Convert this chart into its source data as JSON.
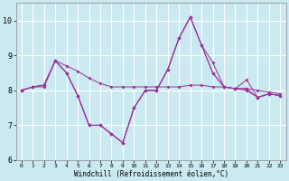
{
  "xlabel": "Windchill (Refroidissement éolien,°C)",
  "background_color": "#cbe9f0",
  "grid_color": "#ffffff",
  "line_color": "#993399",
  "xlim": [
    -0.5,
    23.5
  ],
  "ylim": [
    6,
    10.5
  ],
  "yticks": [
    6,
    7,
    8,
    9,
    10
  ],
  "xticks": [
    0,
    1,
    2,
    3,
    4,
    5,
    6,
    7,
    8,
    9,
    10,
    11,
    12,
    13,
    14,
    15,
    16,
    17,
    18,
    19,
    20,
    21,
    22,
    23
  ],
  "series": [
    [
      8.0,
      8.1,
      8.1,
      8.85,
      8.7,
      8.55,
      8.35,
      8.2,
      8.1,
      8.1,
      8.1,
      8.1,
      8.1,
      8.1,
      8.1,
      8.15,
      8.15,
      8.1,
      8.1,
      8.05,
      8.05,
      8.0,
      7.95,
      7.9
    ],
    [
      8.0,
      8.1,
      8.15,
      8.85,
      8.5,
      7.85,
      7.0,
      7.0,
      6.75,
      6.5,
      7.5,
      8.0,
      8.0,
      8.6,
      9.5,
      10.1,
      9.3,
      8.8,
      8.1,
      8.05,
      8.0,
      7.8,
      7.9,
      7.85
    ],
    [
      8.0,
      8.1,
      8.15,
      8.85,
      8.5,
      7.85,
      7.0,
      7.0,
      6.75,
      6.5,
      7.5,
      8.0,
      8.0,
      8.6,
      9.5,
      10.1,
      9.3,
      8.5,
      8.1,
      8.05,
      8.05,
      7.8,
      7.9,
      7.85
    ],
    [
      8.0,
      8.1,
      8.15,
      8.85,
      8.5,
      7.85,
      7.0,
      7.0,
      6.75,
      6.5,
      7.5,
      8.0,
      8.0,
      8.6,
      9.5,
      10.1,
      9.3,
      8.5,
      8.1,
      8.05,
      8.3,
      7.8,
      7.9,
      7.85
    ]
  ],
  "tick_fontsize": 5.5,
  "xlabel_fontsize": 5.5
}
